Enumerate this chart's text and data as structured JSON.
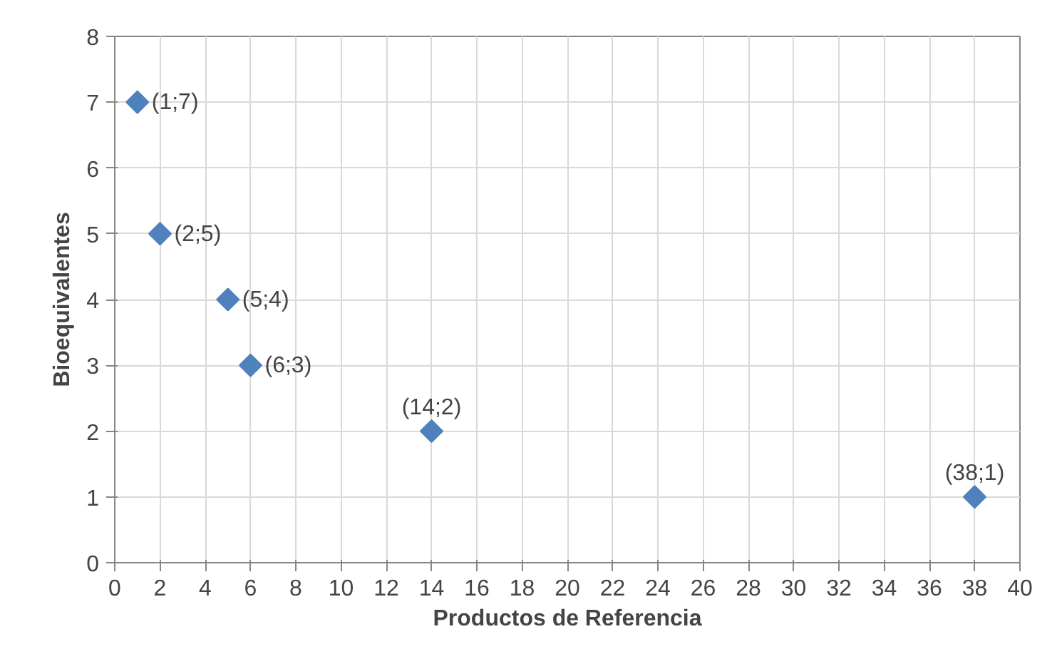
{
  "chart_data": {
    "type": "scatter",
    "xlabel": "Productos de Referencia",
    "ylabel": "Bioequivalentes",
    "x": [
      1,
      2,
      5,
      6,
      14,
      38
    ],
    "series": [
      {
        "color": "#4f81bd",
        "values": [
          7,
          5,
          4,
          3,
          2,
          1
        ],
        "value_labels": [
          "(1;7)",
          "(2;5)",
          "(5;4)",
          "(6;3)",
          "(14;2)",
          "(38;1)"
        ]
      }
    ],
    "xlim": [
      0,
      40
    ],
    "xticks": [
      0,
      2,
      4,
      6,
      8,
      10,
      12,
      14,
      16,
      18,
      20,
      22,
      24,
      26,
      28,
      30,
      32,
      34,
      36,
      38,
      40
    ],
    "ylim": [
      0,
      8
    ],
    "yticks": [
      0,
      1,
      2,
      3,
      4,
      5,
      6,
      7,
      8
    ],
    "grid": true,
    "marker": "diamond"
  }
}
